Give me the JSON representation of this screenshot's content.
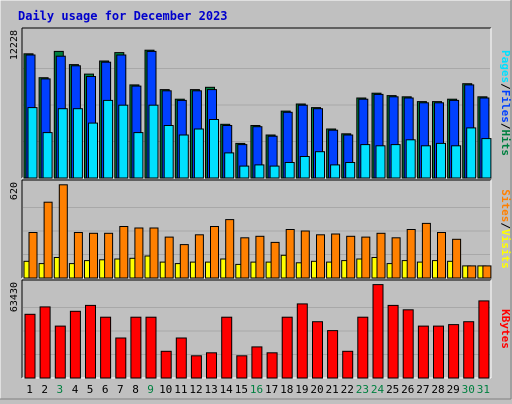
{
  "title": "Daily usage for December 2023",
  "colors": {
    "background": "#c0c0c0",
    "plot_bg": "#c0c0c0",
    "title": "#0000cc",
    "hits": "#008040",
    "files": "#0040ff",
    "pages": "#00e0ff",
    "visits": "#ffff00",
    "sites": "#ff8000",
    "kbytes": "#ff0000",
    "weekend_day": "#008040",
    "weekday_day": "#000000"
  },
  "chart_data": [
    {
      "type": "bar",
      "panel": "hits-files-pages",
      "ylabel_parts": [
        "Pages",
        "Files",
        "Hits"
      ],
      "ymax_label": "12228",
      "ylim": [
        0,
        12228
      ],
      "categories": [
        "1",
        "2",
        "3",
        "4",
        "5",
        "6",
        "7",
        "8",
        "9",
        "10",
        "11",
        "12",
        "13",
        "14",
        "15",
        "16",
        "17",
        "18",
        "19",
        "20",
        "21",
        "22",
        "23",
        "24",
        "25",
        "26",
        "27",
        "28",
        "29",
        "30",
        "31"
      ],
      "series": [
        {
          "name": "Hits",
          "values": [
            10400,
            8400,
            10600,
            9500,
            8700,
            9800,
            10500,
            7800,
            10700,
            7400,
            6600,
            7400,
            7600,
            4500,
            2900,
            4400,
            3600,
            5600,
            6200,
            5900,
            4100,
            3700,
            6700,
            7100,
            6900,
            6800,
            6400,
            6400,
            6600,
            7900,
            6800
          ]
        },
        {
          "name": "Files",
          "values": [
            10300,
            8300,
            10200,
            9400,
            8500,
            9700,
            10300,
            7700,
            10600,
            7300,
            6500,
            7300,
            7400,
            4400,
            2800,
            4300,
            3500,
            5500,
            6100,
            5800,
            4000,
            3600,
            6600,
            7000,
            6800,
            6700,
            6300,
            6300,
            6500,
            7800,
            6700
          ]
        },
        {
          "name": "Pages",
          "values": [
            5900,
            3800,
            5800,
            5800,
            4600,
            6500,
            6100,
            3800,
            6100,
            4400,
            3600,
            4100,
            4900,
            2100,
            1000,
            1100,
            1000,
            1300,
            1800,
            2200,
            1100,
            1300,
            2800,
            2700,
            2800,
            3200,
            2700,
            2900,
            2700,
            4200,
            3300
          ]
        }
      ]
    },
    {
      "type": "bar",
      "panel": "visits-sites",
      "ylabel_parts": [
        "Sites",
        "Visits"
      ],
      "ymax_label": "620",
      "ylim": [
        0,
        620
      ],
      "categories": [
        "1",
        "2",
        "3",
        "4",
        "5",
        "6",
        "7",
        "8",
        "9",
        "10",
        "11",
        "12",
        "13",
        "14",
        "15",
        "16",
        "17",
        "18",
        "19",
        "20",
        "21",
        "22",
        "23",
        "24",
        "25",
        "26",
        "27",
        "28",
        "29",
        "30",
        "31"
      ],
      "series": [
        {
          "name": "Visits",
          "values": [
            110,
            95,
            135,
            95,
            115,
            120,
            125,
            130,
            145,
            105,
            95,
            105,
            105,
            125,
            90,
            105,
            105,
            150,
            100,
            110,
            105,
            115,
            125,
            135,
            95,
            115,
            105,
            115,
            110,
            80,
            80
          ]
        },
        {
          "name": "Sites",
          "values": [
            300,
            500,
            615,
            300,
            295,
            295,
            340,
            330,
            330,
            270,
            220,
            285,
            340,
            385,
            265,
            275,
            235,
            320,
            310,
            285,
            290,
            275,
            270,
            295,
            265,
            320,
            360,
            300,
            255,
            80,
            80
          ]
        }
      ]
    },
    {
      "type": "bar",
      "panel": "kbytes",
      "ylabel_parts": [
        "KBytes"
      ],
      "ymax_label": "63430",
      "ylim": [
        0,
        63430
      ],
      "categories": [
        "1",
        "2",
        "3",
        "4",
        "5",
        "6",
        "7",
        "8",
        "9",
        "10",
        "11",
        "12",
        "13",
        "14",
        "15",
        "16",
        "17",
        "18",
        "19",
        "20",
        "21",
        "22",
        "23",
        "24",
        "25",
        "26",
        "27",
        "28",
        "29",
        "30",
        "31"
      ],
      "series": [
        {
          "name": "KBytes",
          "values": [
            43000,
            48000,
            35000,
            45000,
            49000,
            41000,
            27000,
            41000,
            41000,
            18000,
            27000,
            15000,
            17000,
            41000,
            15000,
            21000,
            17000,
            41000,
            50000,
            38000,
            32000,
            18000,
            41000,
            63000,
            49000,
            46000,
            35000,
            35000,
            36000,
            38000,
            52000
          ]
        }
      ]
    }
  ],
  "weekend_days": [
    "3",
    "9",
    "16",
    "23",
    "24",
    "30",
    "31"
  ]
}
